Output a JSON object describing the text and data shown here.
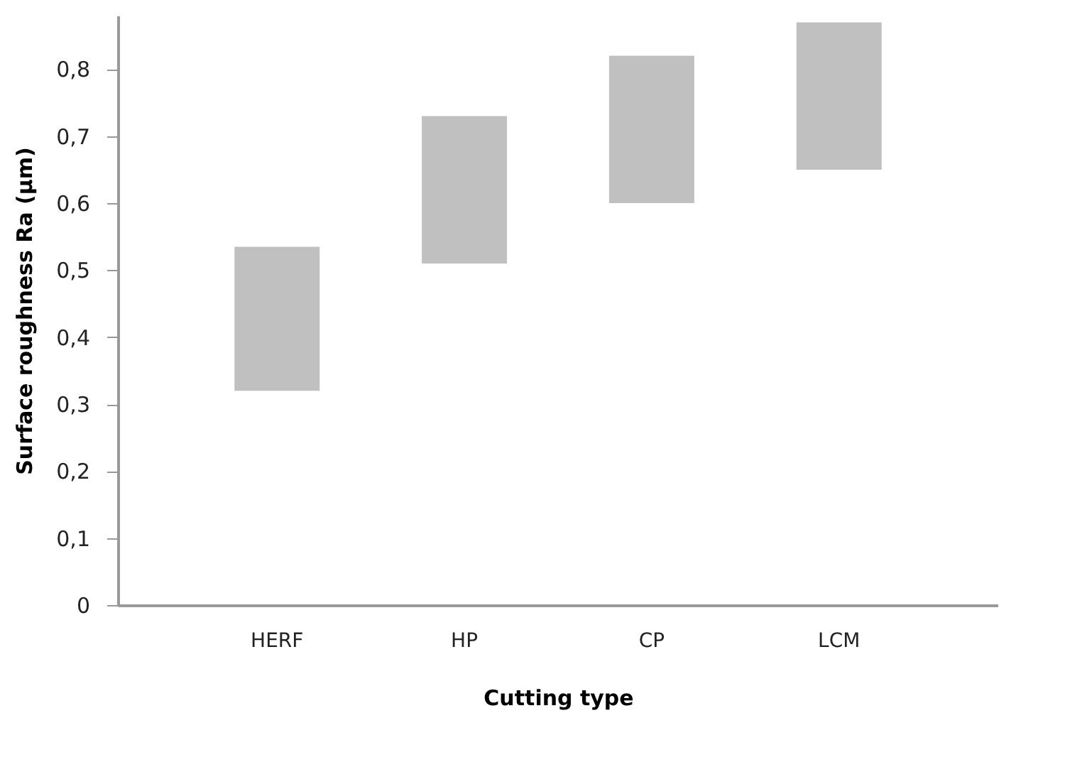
{
  "chart_data": {
    "type": "bar",
    "xlabel": "Cutting type",
    "ylabel": "Surface roughness Ra (µm)",
    "categories": [
      "HERF",
      "HP",
      "CP",
      "LCM"
    ],
    "base": [
      0.32,
      0.51,
      0.6,
      0.65
    ],
    "values": [
      0.215,
      0.22,
      0.22,
      0.22
    ],
    "color": "#c0c0c0",
    "ylim": [
      0,
      0.88
    ],
    "yticks": [
      {
        "value": 0,
        "label": "0"
      },
      {
        "value": 0.1,
        "label": "0,1"
      },
      {
        "value": 0.2,
        "label": "0,2"
      },
      {
        "value": 0.3,
        "label": "0,3"
      },
      {
        "value": 0.4,
        "label": "0,4"
      },
      {
        "value": 0.5,
        "label": "0,5"
      },
      {
        "value": 0.6,
        "label": "0,6"
      },
      {
        "value": 0.7,
        "label": "0,7"
      },
      {
        "value": 0.8,
        "label": "0,8"
      }
    ],
    "grid": false
  }
}
